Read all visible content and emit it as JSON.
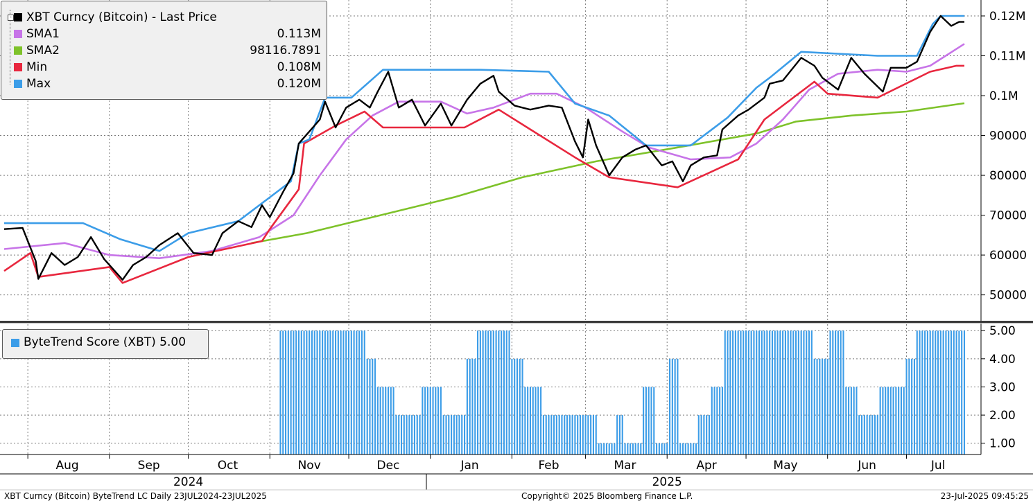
{
  "legend": {
    "title": "XBT Curncy (Bitcoin) - Last Price",
    "items": [
      {
        "name": "SMA1",
        "value": "0.113M",
        "color": "#c774e8"
      },
      {
        "name": "SMA2",
        "value": "98116.7891",
        "color": "#7ec22a"
      },
      {
        "name": "Min",
        "value": "0.108M",
        "color": "#e8273e"
      },
      {
        "name": "Max",
        "value": "0.120M",
        "color": "#3c9de8"
      }
    ],
    "title_color": "#000000"
  },
  "score_legend": {
    "label": "ByteTrend Score (XBT) 5.00",
    "color": "#3c9de8"
  },
  "footer": {
    "left": "XBT Curncy (Bitcoin) ByteTrend LC  Daily 23JUL2024-23JUL2025",
    "center": "Copyright© 2025 Bloomberg Finance L.P.",
    "right": "23-Jul-2025 09:45:25"
  },
  "chart_data": [
    {
      "type": "line",
      "x_axis": {
        "months": [
          "Aug",
          "Sep",
          "Oct",
          "Nov",
          "Dec",
          "Jan",
          "Feb",
          "Mar",
          "Apr",
          "May",
          "Jun",
          "Jul"
        ],
        "years": [
          "2024",
          "2025"
        ],
        "range": [
          "2024-07-23",
          "2025-07-23"
        ]
      },
      "y_axis": {
        "ticks": [
          50000,
          60000,
          70000,
          80000,
          90000,
          100000,
          110000,
          120000
        ],
        "tick_labels": [
          "50000",
          "60000",
          "70000",
          "80000",
          "90000",
          "0.1M",
          "0.11M",
          "0.12M"
        ],
        "ylim": [
          43500,
          124000
        ],
        "position": "right"
      },
      "grid": true,
      "legend_placement": "top-left",
      "series": [
        {
          "name": "XBT Curncy (Bitcoin) - Last Price",
          "color": "#000000",
          "points": [
            [
              "2024-07-23",
              66500
            ],
            [
              "2024-07-30",
              66800
            ],
            [
              "2024-08-04",
              58500
            ],
            [
              "2024-08-05",
              54000
            ],
            [
              "2024-08-10",
              60500
            ],
            [
              "2024-08-15",
              57500
            ],
            [
              "2024-08-20",
              59500
            ],
            [
              "2024-08-25",
              64500
            ],
            [
              "2024-08-30",
              59000
            ],
            [
              "2024-09-06",
              53800
            ],
            [
              "2024-09-10",
              57500
            ],
            [
              "2024-09-15",
              59500
            ],
            [
              "2024-09-20",
              62500
            ],
            [
              "2024-09-27",
              65500
            ],
            [
              "2024-10-03",
              60500
            ],
            [
              "2024-10-10",
              60000
            ],
            [
              "2024-10-14",
              65500
            ],
            [
              "2024-10-20",
              68500
            ],
            [
              "2024-10-25",
              67000
            ],
            [
              "2024-10-29",
              72500
            ],
            [
              "2024-11-01",
              69500
            ],
            [
              "2024-11-06",
              75800
            ],
            [
              "2024-11-10",
              80500
            ],
            [
              "2024-11-12",
              88000
            ],
            [
              "2024-11-16",
              91000
            ],
            [
              "2024-11-20",
              94000
            ],
            [
              "2024-11-22",
              98500
            ],
            [
              "2024-11-26",
              92000
            ],
            [
              "2024-11-30",
              97000
            ],
            [
              "2024-12-05",
              99000
            ],
            [
              "2024-12-09",
              97000
            ],
            [
              "2024-12-12",
              101000
            ],
            [
              "2024-12-16",
              106000
            ],
            [
              "2024-12-20",
              97000
            ],
            [
              "2024-12-25",
              99000
            ],
            [
              "2024-12-30",
              92500
            ],
            [
              "2025-01-05",
              98000
            ],
            [
              "2025-01-09",
              92500
            ],
            [
              "2025-01-15",
              99000
            ],
            [
              "2025-01-20",
              103000
            ],
            [
              "2025-01-25",
              105000
            ],
            [
              "2025-01-27",
              101000
            ],
            [
              "2025-02-02",
              97500
            ],
            [
              "2025-02-08",
              96500
            ],
            [
              "2025-02-15",
              97500
            ],
            [
              "2025-02-20",
              97000
            ],
            [
              "2025-02-25",
              88500
            ],
            [
              "2025-02-28",
              84500
            ],
            [
              "2025-03-02",
              94000
            ],
            [
              "2025-03-05",
              87500
            ],
            [
              "2025-03-10",
              80000
            ],
            [
              "2025-03-15",
              84500
            ],
            [
              "2025-03-20",
              86500
            ],
            [
              "2025-03-24",
              87500
            ],
            [
              "2025-03-30",
              82500
            ],
            [
              "2025-04-03",
              83500
            ],
            [
              "2025-04-07",
              78500
            ],
            [
              "2025-04-10",
              82500
            ],
            [
              "2025-04-15",
              84500
            ],
            [
              "2025-04-20",
              85000
            ],
            [
              "2025-04-22",
              91500
            ],
            [
              "2025-04-28",
              95000
            ],
            [
              "2025-05-02",
              96500
            ],
            [
              "2025-05-08",
              99500
            ],
            [
              "2025-05-10",
              103000
            ],
            [
              "2025-05-15",
              103800
            ],
            [
              "2025-05-22",
              109500
            ],
            [
              "2025-05-27",
              107500
            ],
            [
              "2025-05-30",
              104500
            ],
            [
              "2025-06-05",
              101500
            ],
            [
              "2025-06-10",
              109500
            ],
            [
              "2025-06-15",
              105500
            ],
            [
              "2025-06-22",
              101000
            ],
            [
              "2025-06-25",
              107000
            ],
            [
              "2025-07-01",
              107000
            ],
            [
              "2025-07-05",
              108500
            ],
            [
              "2025-07-10",
              116000
            ],
            [
              "2025-07-14",
              120000
            ],
            [
              "2025-07-18",
              117500
            ],
            [
              "2025-07-21",
              118500
            ],
            [
              "2025-07-23",
              118500
            ]
          ]
        },
        {
          "name": "SMA1",
          "color": "#c774e8",
          "points": [
            [
              "2024-07-23",
              61500
            ],
            [
              "2024-08-15",
              63000
            ],
            [
              "2024-09-01",
              60000
            ],
            [
              "2024-09-20",
              59200
            ],
            [
              "2024-10-10",
              61000
            ],
            [
              "2024-10-28",
              64500
            ],
            [
              "2024-11-10",
              70000
            ],
            [
              "2024-11-20",
              80000
            ],
            [
              "2024-11-30",
              89000
            ],
            [
              "2024-12-10",
              95000
            ],
            [
              "2024-12-20",
              98500
            ],
            [
              "2025-01-05",
              98500
            ],
            [
              "2025-01-15",
              95500
            ],
            [
              "2025-01-25",
              97000
            ],
            [
              "2025-02-08",
              100500
            ],
            [
              "2025-02-18",
              100500
            ],
            [
              "2025-03-01",
              97000
            ],
            [
              "2025-03-15",
              91000
            ],
            [
              "2025-03-25",
              87000
            ],
            [
              "2025-04-10",
              84000
            ],
            [
              "2025-04-25",
              84500
            ],
            [
              "2025-05-05",
              88000
            ],
            [
              "2025-05-15",
              94000
            ],
            [
              "2025-05-25",
              101500
            ],
            [
              "2025-06-05",
              105500
            ],
            [
              "2025-06-20",
              106500
            ],
            [
              "2025-07-01",
              106000
            ],
            [
              "2025-07-10",
              107500
            ],
            [
              "2025-07-23",
              113000
            ]
          ]
        },
        {
          "name": "SMA2",
          "color": "#7ec22a",
          "points": [
            [
              "2024-10-25",
              63000
            ],
            [
              "2024-11-15",
              65500
            ],
            [
              "2024-12-10",
              69500
            ],
            [
              "2025-01-10",
              74500
            ],
            [
              "2025-02-05",
              79500
            ],
            [
              "2025-03-05",
              83500
            ],
            [
              "2025-04-05",
              87000
            ],
            [
              "2025-05-05",
              90500
            ],
            [
              "2025-05-20",
              93500
            ],
            [
              "2025-06-10",
              95000
            ],
            [
              "2025-07-01",
              96000
            ],
            [
              "2025-07-23",
              98100
            ]
          ]
        },
        {
          "name": "Min",
          "color": "#e8273e",
          "points": [
            [
              "2024-07-23",
              56000
            ],
            [
              "2024-08-02",
              60500
            ],
            [
              "2024-08-05",
              54500
            ],
            [
              "2024-09-01",
              57000
            ],
            [
              "2024-09-06",
              53000
            ],
            [
              "2024-10-01",
              59500
            ],
            [
              "2024-10-29",
              63500
            ],
            [
              "2024-11-01",
              66500
            ],
            [
              "2024-11-12",
              76500
            ],
            [
              "2024-11-14",
              88000
            ],
            [
              "2024-11-26",
              92500
            ],
            [
              "2024-12-07",
              96000
            ],
            [
              "2024-12-14",
              92000
            ],
            [
              "2025-01-14",
              92000
            ],
            [
              "2025-01-27",
              96500
            ],
            [
              "2025-02-25",
              84500
            ],
            [
              "2025-03-10",
              79500
            ],
            [
              "2025-04-05",
              77000
            ],
            [
              "2025-04-28",
              84000
            ],
            [
              "2025-05-08",
              94000
            ],
            [
              "2025-05-27",
              103500
            ],
            [
              "2025-06-01",
              100500
            ],
            [
              "2025-06-20",
              99500
            ],
            [
              "2025-07-10",
              106000
            ],
            [
              "2025-07-20",
              107500
            ],
            [
              "2025-07-23",
              107500
            ]
          ]
        },
        {
          "name": "Max",
          "color": "#3c9de8",
          "points": [
            [
              "2024-07-23",
              68000
            ],
            [
              "2024-08-22",
              68000
            ],
            [
              "2024-09-05",
              64000
            ],
            [
              "2024-09-20",
              61000
            ],
            [
              "2024-10-01",
              65500
            ],
            [
              "2024-10-20",
              68500
            ],
            [
              "2024-10-29",
              73000
            ],
            [
              "2024-11-09",
              78500
            ],
            [
              "2024-11-12",
              88000
            ],
            [
              "2024-11-16",
              89000
            ],
            [
              "2024-11-22",
              99500
            ],
            [
              "2024-12-02",
              99500
            ],
            [
              "2024-12-14",
              106500
            ],
            [
              "2025-01-14",
              106500
            ],
            [
              "2025-01-20",
              106500
            ],
            [
              "2025-02-15",
              106000
            ],
            [
              "2025-02-25",
              98000
            ],
            [
              "2025-03-10",
              95000
            ],
            [
              "2025-03-24",
              87500
            ],
            [
              "2025-04-10",
              87500
            ],
            [
              "2025-04-24",
              94500
            ],
            [
              "2025-05-05",
              102000
            ],
            [
              "2025-05-10",
              104500
            ],
            [
              "2025-05-22",
              111000
            ],
            [
              "2025-06-20",
              110000
            ],
            [
              "2025-07-05",
              110000
            ],
            [
              "2025-07-11",
              118000
            ],
            [
              "2025-07-14",
              120000
            ],
            [
              "2025-07-23",
              120000
            ]
          ]
        }
      ]
    },
    {
      "type": "bar",
      "name": "ByteTrend Score (XBT)",
      "color": "#3c9de8",
      "y_axis": {
        "ticks": [
          1.0,
          2.0,
          3.0,
          4.0,
          5.0
        ],
        "tick_labels": [
          "1.00",
          "2.00",
          "3.00",
          "4.00",
          "5.00"
        ],
        "ylim": [
          0.6,
          5.3
        ],
        "position": "right"
      },
      "segments": [
        {
          "from": "2024-11-05",
          "to": "2024-12-07",
          "value": 5
        },
        {
          "from": "2024-12-08",
          "to": "2024-12-11",
          "value": 4
        },
        {
          "from": "2024-12-12",
          "to": "2024-12-18",
          "value": 3
        },
        {
          "from": "2024-12-19",
          "to": "2024-12-28",
          "value": 2
        },
        {
          "from": "2024-12-29",
          "to": "2025-01-05",
          "value": 3
        },
        {
          "from": "2025-01-06",
          "to": "2025-01-14",
          "value": 2
        },
        {
          "from": "2025-01-15",
          "to": "2025-01-18",
          "value": 4
        },
        {
          "from": "2025-01-19",
          "to": "2025-01-31",
          "value": 5
        },
        {
          "from": "2025-02-01",
          "to": "2025-02-05",
          "value": 4
        },
        {
          "from": "2025-02-06",
          "to": "2025-02-12",
          "value": 3
        },
        {
          "from": "2025-02-13",
          "to": "2025-03-05",
          "value": 2
        },
        {
          "from": "2025-03-06",
          "to": "2025-03-12",
          "value": 1
        },
        {
          "from": "2025-03-13",
          "to": "2025-03-15",
          "value": 2
        },
        {
          "from": "2025-03-16",
          "to": "2025-03-22",
          "value": 1
        },
        {
          "from": "2025-03-23",
          "to": "2025-03-27",
          "value": 3
        },
        {
          "from": "2025-03-28",
          "to": "2025-04-01",
          "value": 1
        },
        {
          "from": "2025-04-02",
          "to": "2025-04-05",
          "value": 4
        },
        {
          "from": "2025-04-06",
          "to": "2025-04-12",
          "value": 1
        },
        {
          "from": "2025-04-13",
          "to": "2025-04-17",
          "value": 2
        },
        {
          "from": "2025-04-18",
          "to": "2025-04-22",
          "value": 3
        },
        {
          "from": "2025-04-23",
          "to": "2025-05-26",
          "value": 5
        },
        {
          "from": "2025-05-27",
          "to": "2025-06-01",
          "value": 4
        },
        {
          "from": "2025-06-02",
          "to": "2025-06-07",
          "value": 5
        },
        {
          "from": "2025-06-08",
          "to": "2025-06-12",
          "value": 3
        },
        {
          "from": "2025-06-13",
          "to": "2025-06-20",
          "value": 2
        },
        {
          "from": "2025-06-21",
          "to": "2025-06-30",
          "value": 3
        },
        {
          "from": "2025-07-01",
          "to": "2025-07-04",
          "value": 4
        },
        {
          "from": "2025-07-05",
          "to": "2025-07-23",
          "value": 5
        }
      ]
    }
  ]
}
